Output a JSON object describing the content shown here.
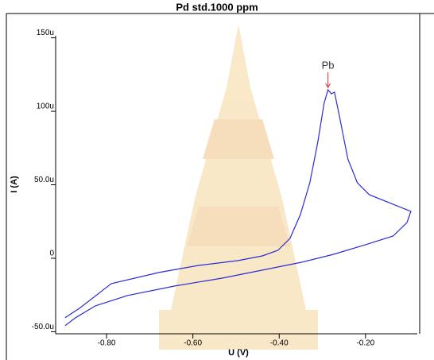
{
  "chart_data": {
    "type": "line",
    "title": "Pd std.1000 ppm",
    "x_label": "U (V)",
    "y_label": "I (A)",
    "xlim": [
      -0.918,
      -0.08
    ],
    "ylim": [
      -5.14e-05,
      0.0001514
    ],
    "xticks": [
      {
        "value": -0.8,
        "label": "-0.80"
      },
      {
        "value": -0.6,
        "label": "-0.60"
      },
      {
        "value": -0.4,
        "label": "-0.40"
      },
      {
        "value": -0.2,
        "label": "-0.20"
      }
    ],
    "yticks": [
      {
        "value": -5e-05,
        "label": "-50.0u"
      },
      0,
      {
        "value": 5e-05,
        "label": "50.0u"
      },
      {
        "value": 0.0001,
        "label": "100u"
      },
      {
        "value": 0.00015,
        "label": "150u"
      }
    ],
    "series": [
      {
        "color": "#2b2bd6",
        "x": [
          -0.896,
          -0.863,
          -0.789,
          -0.679,
          -0.587,
          -0.495,
          -0.439,
          -0.403,
          -0.375,
          -0.351,
          -0.329,
          -0.311,
          -0.296,
          -0.287,
          -0.279,
          -0.272,
          -0.259,
          -0.241,
          -0.219,
          -0.191,
          -0.145,
          -0.095,
          -0.104,
          -0.136,
          -0.2,
          -0.274,
          -0.347,
          -0.439,
          -0.531,
          -0.642,
          -0.752,
          -0.826,
          -0.872,
          -0.896
        ],
        "values": [
          -4.05e-05,
          -3.41e-05,
          -1.73e-05,
          -9.7e-06,
          -4.9e-06,
          -1.6e-06,
          1.6e-06,
          5.4e-06,
          1.35e-05,
          2.97e-05,
          5.14e-05,
          7.84e-05,
          0.0001054,
          0.0001146,
          0.0001119,
          0.000113,
          9.46e-05,
          6.76e-05,
          5.14e-05,
          4.32e-05,
          3.78e-05,
          3.19e-05,
          2.43e-05,
          1.51e-05,
          9.2e-06,
          2.7e-06,
          -2.7e-06,
          -8.1e-06,
          -1.35e-05,
          -1.89e-05,
          -2.54e-05,
          -3.24e-05,
          -4.05e-05,
          -4.59e-05
        ]
      }
    ],
    "annotations": [
      {
        "text": "Pb",
        "x": -0.287,
        "y": 0.0001146,
        "color": "#e03030"
      }
    ]
  }
}
